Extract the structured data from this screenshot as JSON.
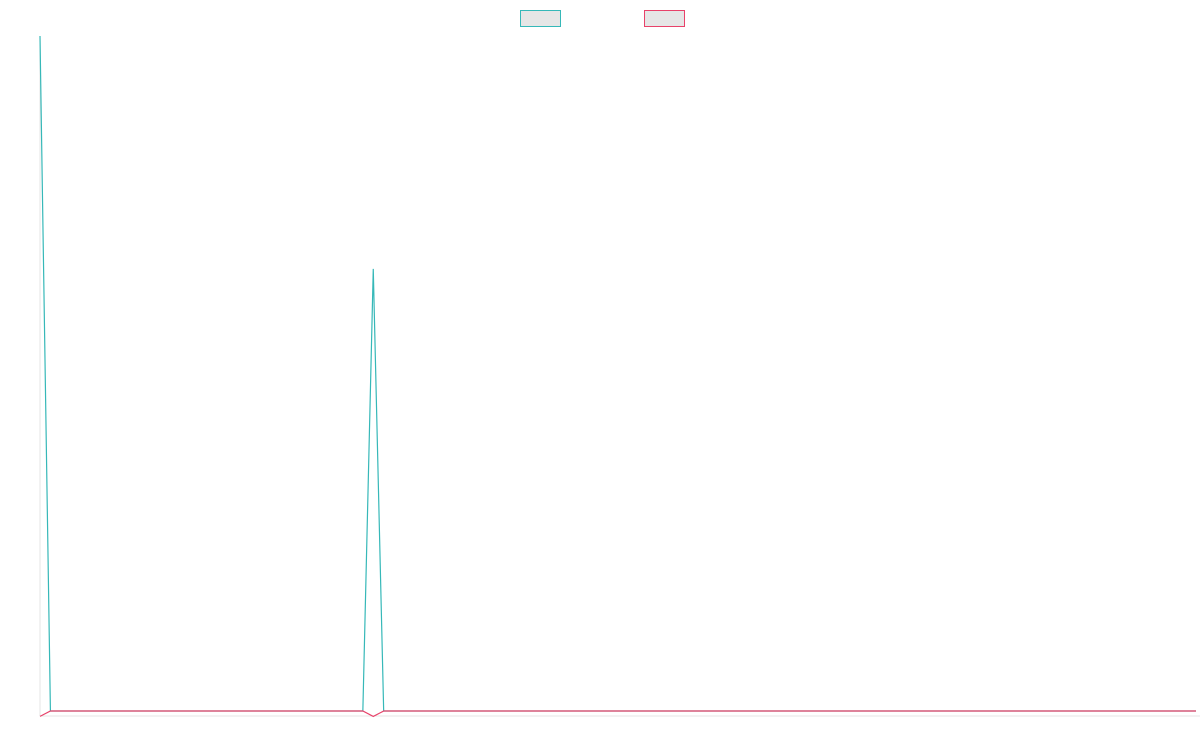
{
  "chart_data": {
    "type": "line",
    "x_count": 112,
    "legend": {
      "placement": "top-center",
      "entries": [
        {
          "series_index": 0,
          "label": ""
        },
        {
          "series_index": 1,
          "label": ""
        }
      ]
    },
    "ylim": [
      0,
      1
    ],
    "grid": false,
    "series": [
      {
        "color": "#36b8b8",
        "legend_fill": "#e6e6e6",
        "points": [
          {
            "x": 0,
            "y": 1.0
          },
          {
            "x": 1,
            "y": 0.0
          },
          {
            "x": 31,
            "y": 0.0
          },
          {
            "x": 32,
            "y": 0.655
          },
          {
            "x": 33,
            "y": 0.0
          },
          {
            "x": 111,
            "y": 0.0
          }
        ]
      },
      {
        "color": "#e8426a",
        "legend_fill": "#e6e6e6",
        "points": [
          {
            "x": 0,
            "y": -0.008
          },
          {
            "x": 1,
            "y": 0.0
          },
          {
            "x": 31,
            "y": 0.0
          },
          {
            "x": 32,
            "y": -0.008
          },
          {
            "x": 33,
            "y": 0.0
          },
          {
            "x": 111,
            "y": 0.0
          }
        ]
      }
    ]
  }
}
